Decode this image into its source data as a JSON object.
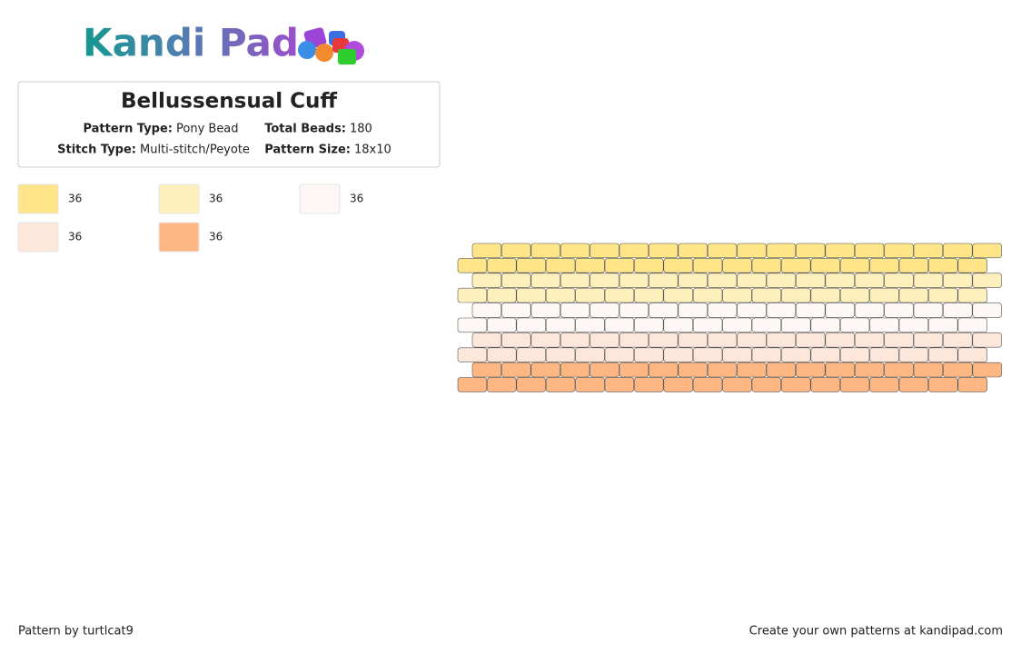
{
  "header": {
    "logo": "Kandi Pad"
  },
  "info": {
    "title": "Bellussensual Cuff",
    "fields": [
      {
        "label": "Pattern Type:",
        "value": "Pony Bead"
      },
      {
        "label": "Total Beads:",
        "value": "180"
      },
      {
        "label": "Stitch Type:",
        "value": "Multi-stitch/Peyote"
      },
      {
        "label": "Pattern Size:",
        "value": "18x10"
      }
    ]
  },
  "palette": [
    {
      "color": "#fee58a",
      "count": "36"
    },
    {
      "color": "#fef0bd",
      "count": "36"
    },
    {
      "color": "#fdf8f6",
      "count": "36"
    },
    {
      "color": "#fde7da",
      "count": "36"
    },
    {
      "color": "#feb682",
      "count": "36"
    }
  ],
  "bead_rows": [
    [
      0,
      0,
      0,
      0,
      0,
      0,
      0,
      0,
      0,
      0,
      0,
      0,
      0,
      0,
      0,
      0,
      0,
      0
    ],
    [
      0,
      0,
      0,
      0,
      0,
      0,
      0,
      0,
      0,
      0,
      0,
      0,
      0,
      0,
      0,
      0,
      0,
      0
    ],
    [
      1,
      1,
      1,
      1,
      1,
      1,
      1,
      1,
      1,
      1,
      1,
      1,
      1,
      1,
      1,
      1,
      1,
      1
    ],
    [
      1,
      1,
      1,
      1,
      1,
      1,
      1,
      1,
      1,
      1,
      1,
      1,
      1,
      1,
      1,
      1,
      1,
      1
    ],
    [
      2,
      2,
      2,
      2,
      2,
      2,
      2,
      2,
      2,
      2,
      2,
      2,
      2,
      2,
      2,
      2,
      2,
      2
    ],
    [
      2,
      2,
      2,
      2,
      2,
      2,
      2,
      2,
      2,
      2,
      2,
      2,
      2,
      2,
      2,
      2,
      2,
      2
    ],
    [
      3,
      3,
      3,
      3,
      3,
      3,
      3,
      3,
      3,
      3,
      3,
      3,
      3,
      3,
      3,
      3,
      3,
      3
    ],
    [
      3,
      3,
      3,
      3,
      3,
      3,
      3,
      3,
      3,
      3,
      3,
      3,
      3,
      3,
      3,
      3,
      3,
      3
    ],
    [
      4,
      4,
      4,
      4,
      4,
      4,
      4,
      4,
      4,
      4,
      4,
      4,
      4,
      4,
      4,
      4,
      4,
      4
    ],
    [
      4,
      4,
      4,
      4,
      4,
      4,
      4,
      4,
      4,
      4,
      4,
      4,
      4,
      4,
      4,
      4,
      4,
      4
    ]
  ],
  "footer": {
    "credit": "Pattern by turtlcat9",
    "promo": "Create your own patterns at kandipad.com"
  }
}
